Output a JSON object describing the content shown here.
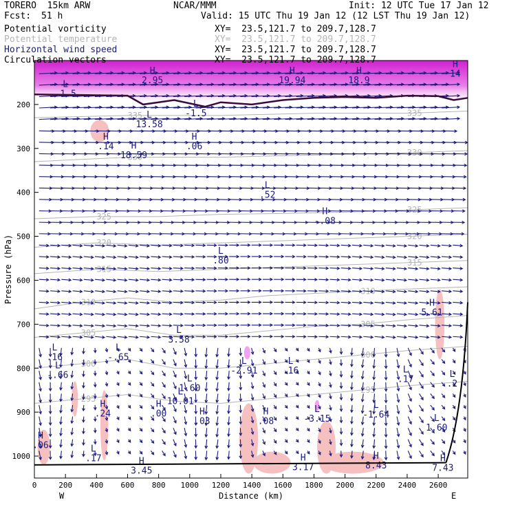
{
  "header": {
    "model": "TORERO  15km ARW",
    "center": "NCAR/MMM",
    "init": "Init: 12 UTC Tue 17 Jan 12",
    "fcst_label": "Fcst:",
    "fcst_value": "51 h",
    "valid": "Valid: 15 UTC Thu 19 Jan 12 (12 LST Thu 19 Jan 12)"
  },
  "legend": [
    {
      "name": "Potential vorticity",
      "color": "#000000",
      "xy": "XY=  23.5,121.7 to 209.7,128.7"
    },
    {
      "name": "Potential temperature",
      "color": "#b4b4b4",
      "xy": "XY=  23.5,121.7 to 209.7,128.7"
    },
    {
      "name": "Horizontal wind speed",
      "color": "#1a1a7a",
      "xy": "XY=  23.5,121.7 to 209.7,128.7"
    },
    {
      "name": "Circulation vectors",
      "color": "#000000",
      "xy": "XY=  23.5,121.7 to 209.7,128.7"
    }
  ],
  "chart_data": {
    "type": "cross-section",
    "xlabel": "Distance (km)",
    "ylabel": "Pressure (hPa)",
    "xlim": [
      0,
      2790
    ],
    "ylim": [
      1050,
      100
    ],
    "x_ticks": [
      0,
      200,
      400,
      600,
      800,
      1000,
      1200,
      1400,
      1600,
      1800,
      2000,
      2200,
      2400,
      2600
    ],
    "y_ticks": [
      200,
      300,
      400,
      500,
      600,
      700,
      800,
      900,
      1000
    ],
    "end_labels": {
      "left": "W",
      "right": "E"
    },
    "colors": {
      "vectors": "#1a1a7a",
      "theta": "#b4b4b4",
      "pv_contour": "#3a0a3a",
      "shade_light": "#f7c0c0",
      "shade_magenta": "#e060e0",
      "shade_pink": "#f4a0f4"
    },
    "theta_isentropes": [
      {
        "label": "310",
        "points": [
          [
            0,
            665
          ],
          [
            300,
            650
          ],
          [
            600,
            640
          ],
          [
            900,
            650
          ],
          [
            1200,
            645
          ],
          [
            1500,
            635
          ],
          [
            1800,
            630
          ],
          [
            2100,
            625
          ],
          [
            2400,
            620
          ],
          [
            2790,
            615
          ]
        ]
      },
      {
        "label": "305",
        "points": [
          [
            0,
            730
          ],
          [
            300,
            720
          ],
          [
            600,
            710
          ],
          [
            900,
            725
          ],
          [
            1200,
            725
          ],
          [
            1500,
            715
          ],
          [
            1800,
            705
          ],
          [
            2100,
            700
          ],
          [
            2400,
            690
          ],
          [
            2790,
            680
          ]
        ]
      },
      {
        "label": "300",
        "points": [
          [
            0,
            800
          ],
          [
            300,
            790
          ],
          [
            600,
            780
          ],
          [
            900,
            800
          ],
          [
            1200,
            800
          ],
          [
            1500,
            790
          ],
          [
            1800,
            780
          ],
          [
            2100,
            770
          ],
          [
            2400,
            760
          ],
          [
            2790,
            750
          ]
        ]
      },
      {
        "label": "295",
        "points": [
          [
            0,
            880
          ],
          [
            300,
            870
          ],
          [
            600,
            860
          ],
          [
            900,
            875
          ],
          [
            1200,
            880
          ],
          [
            1500,
            870
          ],
          [
            1800,
            860
          ],
          [
            2100,
            850
          ],
          [
            2400,
            840
          ],
          [
            2790,
            830
          ]
        ]
      },
      {
        "label": "315",
        "points": [
          [
            0,
            585
          ],
          [
            400,
            575
          ],
          [
            800,
            580
          ],
          [
            1200,
            575
          ],
          [
            1600,
            570
          ],
          [
            2000,
            565
          ],
          [
            2400,
            560
          ],
          [
            2790,
            555
          ]
        ]
      },
      {
        "label": "320",
        "points": [
          [
            0,
            525
          ],
          [
            400,
            515
          ],
          [
            800,
            520
          ],
          [
            1200,
            515
          ],
          [
            1600,
            510
          ],
          [
            2000,
            505
          ],
          [
            2400,
            500
          ],
          [
            2790,
            495
          ]
        ]
      },
      {
        "label": "325",
        "points": [
          [
            0,
            460
          ],
          [
            400,
            455
          ],
          [
            800,
            455
          ],
          [
            1200,
            450
          ],
          [
            1600,
            448
          ],
          [
            2000,
            445
          ],
          [
            2400,
            440
          ],
          [
            2790,
            435
          ]
        ]
      },
      {
        "label": "330",
        "points": [
          [
            0,
            330
          ],
          [
            600,
            320
          ],
          [
            1200,
            320
          ],
          [
            1800,
            315
          ],
          [
            2400,
            310
          ],
          [
            2790,
            305
          ]
        ]
      },
      {
        "label": "335",
        "points": [
          [
            0,
            230
          ],
          [
            600,
            225
          ],
          [
            1200,
            225
          ],
          [
            1800,
            220
          ],
          [
            2400,
            220
          ],
          [
            2790,
            215
          ]
        ]
      }
    ],
    "pv_tropopause": [
      [
        0,
        177
      ],
      [
        200,
        178
      ],
      [
        400,
        179
      ],
      [
        600,
        180
      ],
      [
        700,
        200
      ],
      [
        900,
        190
      ],
      [
        1100,
        205
      ],
      [
        1200,
        195
      ],
      [
        1400,
        200
      ],
      [
        1600,
        190
      ],
      [
        1800,
        185
      ],
      [
        2000,
        183
      ],
      [
        2200,
        185
      ],
      [
        2400,
        180
      ],
      [
        2600,
        181
      ],
      [
        2700,
        190
      ],
      [
        2790,
        185
      ]
    ],
    "markers": [
      {
        "type": "H",
        "x": 760,
        "p": 130,
        "value": "2.95"
      },
      {
        "type": "H",
        "x": 1660,
        "p": 130,
        "value": "19.94"
      },
      {
        "type": "H",
        "x": 2090,
        "p": 130,
        "value": "18.9"
      },
      {
        "type": "H",
        "x": 2710,
        "p": 115,
        "value": "14"
      },
      {
        "type": "H",
        "x": 460,
        "p": 280,
        "value": ".14"
      },
      {
        "type": "H",
        "x": 640,
        "p": 300,
        "value": "18.59"
      },
      {
        "type": "H",
        "x": 1030,
        "p": 280,
        "value": ".06"
      },
      {
        "type": "H",
        "x": 1870,
        "p": 450,
        "value": "-.08"
      },
      {
        "type": "H",
        "x": 2560,
        "p": 658,
        "value": "5.61"
      },
      {
        "type": "H",
        "x": 440,
        "p": 888,
        "value": ".24"
      },
      {
        "type": "H",
        "x": 800,
        "p": 888,
        "value": ".00"
      },
      {
        "type": "H",
        "x": 1080,
        "p": 905,
        "value": ".03"
      },
      {
        "type": "H",
        "x": 1490,
        "p": 905,
        "value": ".08"
      },
      {
        "type": "H",
        "x": 40,
        "p": 960,
        "value": ".06"
      },
      {
        "type": "H",
        "x": 690,
        "p": 1018,
        "value": "3.45"
      },
      {
        "type": "H",
        "x": 1730,
        "p": 1010,
        "value": "3.17"
      },
      {
        "type": "H",
        "x": 2200,
        "p": 1006,
        "value": "8.43"
      },
      {
        "type": "H",
        "x": 2630,
        "p": 1012,
        "value": "7.43"
      },
      {
        "type": "L",
        "x": 200,
        "p": 160,
        "value": "-1.5"
      },
      {
        "type": "L",
        "x": 1040,
        "p": 205,
        "value": "-1.5"
      },
      {
        "type": "L",
        "x": 740,
        "p": 230,
        "value": "13.58"
      },
      {
        "type": "L",
        "x": 1500,
        "p": 390,
        "value": ".52"
      },
      {
        "type": "L",
        "x": 1200,
        "p": 540,
        "value": ".80"
      },
      {
        "type": "L",
        "x": 930,
        "p": 720,
        "value": "3.58"
      },
      {
        "type": "L",
        "x": 130,
        "p": 760,
        "value": ".16"
      },
      {
        "type": "L",
        "x": 540,
        "p": 760,
        "value": "-.65"
      },
      {
        "type": "L",
        "x": 150,
        "p": 800,
        "value": "-.66"
      },
      {
        "type": "L",
        "x": 1350,
        "p": 790,
        "value": "-2.91"
      },
      {
        "type": "L",
        "x": 1650,
        "p": 790,
        "value": ".16"
      },
      {
        "type": "L",
        "x": 1000,
        "p": 830,
        "value": "1.60"
      },
      {
        "type": "L",
        "x": 940,
        "p": 860,
        "value": "10.01"
      },
      {
        "type": "L",
        "x": 2390,
        "p": 810,
        "value": ".17"
      },
      {
        "type": "L",
        "x": 2690,
        "p": 820,
        "value": ".2"
      },
      {
        "type": "L",
        "x": 1820,
        "p": 900,
        "value": "-3.15"
      },
      {
        "type": "L",
        "x": 2200,
        "p": 890,
        "value": "-1.64"
      },
      {
        "type": "L",
        "x": 2590,
        "p": 920,
        "value": "1.60"
      },
      {
        "type": "L",
        "x": 380,
        "p": 990,
        "value": ".17"
      }
    ],
    "shading": [
      {
        "kind": "light",
        "cx": 420,
        "cp": 260,
        "rx": 60,
        "rp": 25
      },
      {
        "kind": "light",
        "cx": 2610,
        "cp": 700,
        "rx": 30,
        "rp": 80
      },
      {
        "kind": "light",
        "cx": 260,
        "cp": 870,
        "rx": 20,
        "rp": 40
      },
      {
        "kind": "light",
        "cx": 450,
        "cp": 930,
        "rx": 25,
        "rp": 80
      },
      {
        "kind": "light",
        "cx": 1380,
        "cp": 960,
        "rx": 60,
        "rp": 80
      },
      {
        "kind": "light",
        "cx": 1880,
        "cp": 980,
        "rx": 60,
        "rp": 60
      },
      {
        "kind": "light",
        "cx": 2050,
        "cp": 1015,
        "rx": 200,
        "rp": 25
      },
      {
        "kind": "light",
        "cx": 1530,
        "cp": 1015,
        "rx": 120,
        "rp": 25
      },
      {
        "kind": "light",
        "cx": 60,
        "cp": 980,
        "rx": 40,
        "rp": 40
      },
      {
        "kind": "pink",
        "cx": 1370,
        "cp": 765,
        "rx": 20,
        "rp": 15
      },
      {
        "kind": "pink",
        "cx": 1820,
        "cp": 885,
        "rx": 15,
        "rp": 12
      }
    ]
  }
}
